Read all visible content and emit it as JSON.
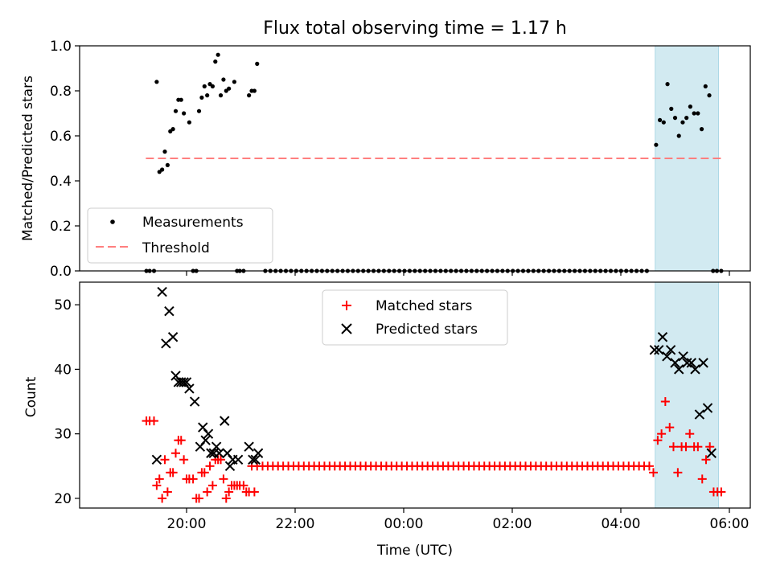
{
  "title": "Flux total observing time = 1.17 h",
  "colors": {
    "measurement": "#000000",
    "threshold": "#ff7f7f",
    "matched": "#ff0000",
    "predicted": "#000000",
    "shade": "#add8e6"
  },
  "chart_data": [
    {
      "type": "scatter",
      "ylabel": "Matched/Predicted stars",
      "ylim": [
        0,
        1.0
      ],
      "yticks": [
        "0.0",
        "0.2",
        "0.4",
        "0.6",
        "0.8",
        "1.0"
      ],
      "legend": {
        "placement": "lower-left",
        "entries": [
          "Measurements",
          "Threshold"
        ]
      },
      "threshold": {
        "value": 0.5,
        "x_start": "19:15",
        "x_end": "05:52"
      },
      "shaded_region": {
        "x_start": "04:38",
        "x_end": "05:48"
      },
      "series": [
        {
          "name": "Measurements",
          "x_hours": [
            19.26,
            19.32,
            19.4,
            19.45,
            19.5,
            19.55,
            19.6,
            19.65,
            19.7,
            19.75,
            19.8,
            19.85,
            19.9,
            19.95,
            20.05,
            20.12,
            20.18,
            20.23,
            20.28,
            20.33,
            20.38,
            20.43,
            20.48,
            20.53,
            20.58,
            20.63,
            20.68,
            20.73,
            20.78,
            20.88,
            20.93,
            20.98,
            21.05,
            21.15,
            21.2,
            21.25,
            21.3
          ],
          "y": [
            0.0,
            0.0,
            0.0,
            0.84,
            0.44,
            0.45,
            0.53,
            0.47,
            0.62,
            0.63,
            0.71,
            0.76,
            0.76,
            0.7,
            0.66,
            0.0,
            0.0,
            0.71,
            0.77,
            0.82,
            0.78,
            0.83,
            0.82,
            0.93,
            0.96,
            0.78,
            0.85,
            0.8,
            0.81,
            0.84,
            0.0,
            0.0,
            0.0,
            0.78,
            0.8,
            0.8,
            0.92
          ]
        }
      ],
      "zero_run": {
        "x_start_hours": 21.45,
        "x_end_hours": 28.55,
        "step_hours": 0.095,
        "value": 0.0
      },
      "late_points": {
        "x_hours": [
          28.65,
          28.72,
          28.79,
          28.86,
          28.93,
          29.0,
          29.07,
          29.14,
          29.21,
          29.28,
          29.35,
          29.42,
          29.49,
          29.56,
          29.63,
          29.7,
          29.77,
          29.85
        ],
        "y": [
          0.56,
          0.67,
          0.66,
          0.83,
          0.72,
          0.68,
          0.6,
          0.66,
          0.68,
          0.73,
          0.7,
          0.7,
          0.63,
          0.82,
          0.78,
          0.0,
          0.0,
          0.0
        ]
      }
    },
    {
      "type": "scatter",
      "xlabel": "Time (UTC)",
      "ylabel": "Count",
      "ylim": [
        18.5,
        53.5
      ],
      "yticks": [
        "20",
        "30",
        "40",
        "50"
      ],
      "xticks": [
        "20:00",
        "22:00",
        "00:00",
        "02:00",
        "04:00",
        "06:00"
      ],
      "legend": {
        "placement": "upper-center",
        "entries": [
          "Matched stars",
          "Predicted stars"
        ]
      },
      "shaded_region": {
        "x_start": "04:38",
        "x_end": "05:48"
      },
      "matched": {
        "x_hours": [
          19.26,
          19.32,
          19.4,
          19.45,
          19.5,
          19.55,
          19.6,
          19.65,
          19.7,
          19.75,
          19.8,
          19.85,
          19.9,
          19.95,
          20.0,
          20.05,
          20.12,
          20.18,
          20.23,
          20.28,
          20.33,
          20.38,
          20.43,
          20.48,
          20.53,
          20.58,
          20.63,
          20.68,
          20.73,
          20.78,
          20.83,
          20.88,
          20.93,
          20.98,
          21.05,
          21.1,
          21.15,
          21.2,
          21.25,
          21.3
        ],
        "y": [
          32,
          32,
          32,
          22,
          23,
          20,
          26,
          21,
          24,
          24,
          27,
          29,
          29,
          26,
          23,
          23,
          23,
          20,
          20,
          24,
          24,
          21,
          25,
          22,
          26,
          26,
          26,
          23,
          20,
          21,
          22,
          22,
          22,
          22,
          22,
          21,
          21,
          25,
          21,
          25
        ]
      },
      "predicted": {
        "x_hours": [
          19.45,
          19.55,
          19.62,
          19.68,
          19.75,
          19.8,
          19.85,
          19.9,
          19.95,
          20.0,
          20.05,
          20.15,
          20.25,
          20.3,
          20.35,
          20.4,
          20.45,
          20.5,
          20.55,
          20.6,
          20.7,
          20.75,
          20.8,
          20.85,
          20.95,
          21.15,
          21.22,
          21.27,
          21.32
        ],
        "y": [
          26,
          52,
          44,
          49,
          45,
          39,
          38,
          38,
          38,
          38,
          37,
          35,
          28,
          31,
          29,
          30,
          27,
          27,
          28,
          27,
          32,
          27,
          25,
          26,
          26,
          28,
          26,
          26,
          27
        ]
      },
      "matched_run": {
        "x_start_hours": 21.4,
        "x_end_hours": 28.55,
        "step_hours": 0.095,
        "value": 25
      },
      "late_matched": {
        "x_hours": [
          28.6,
          28.68,
          28.75,
          28.82,
          28.9,
          28.97,
          29.05,
          29.12,
          29.2,
          29.27,
          29.35,
          29.42,
          29.5,
          29.57,
          29.64,
          29.71,
          29.78,
          29.85
        ],
        "y": [
          24,
          29,
          30,
          35,
          31,
          28,
          24,
          28,
          28,
          30,
          28,
          28,
          23,
          26,
          28,
          21,
          21,
          21
        ]
      },
      "late_predicted": {
        "x_hours": [
          28.62,
          28.7,
          28.77,
          28.85,
          28.92,
          29.0,
          29.07,
          29.15,
          29.22,
          29.3,
          29.37,
          29.45,
          29.52,
          29.6,
          29.67
        ],
        "y": [
          43,
          43,
          45,
          42,
          43,
          41,
          40,
          42,
          41,
          41,
          40,
          33,
          41,
          34,
          27
        ]
      }
    }
  ]
}
